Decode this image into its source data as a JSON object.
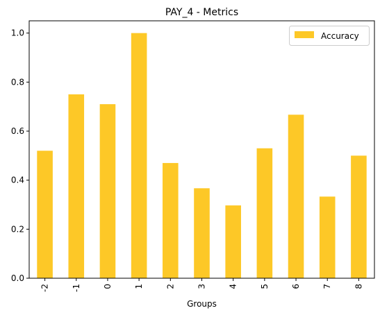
{
  "chart_data": {
    "type": "bar",
    "title": "PAY_4 - Metrics",
    "xlabel": "Groups",
    "ylabel": "",
    "categories": [
      "-2",
      "-1",
      "0",
      "1",
      "2",
      "3",
      "4",
      "5",
      "6",
      "7",
      "8"
    ],
    "series": [
      {
        "name": "Accuracy",
        "color": "#fdc827",
        "values": [
          0.52,
          0.75,
          0.71,
          1.0,
          0.47,
          0.367,
          0.297,
          0.53,
          0.667,
          0.333,
          0.5
        ]
      }
    ],
    "ylim": [
      0,
      1.05
    ],
    "yticks": [
      "0.0",
      "0.2",
      "0.4",
      "0.6",
      "0.8",
      "1.0"
    ],
    "grid": false,
    "legend_position": "top-right"
  }
}
